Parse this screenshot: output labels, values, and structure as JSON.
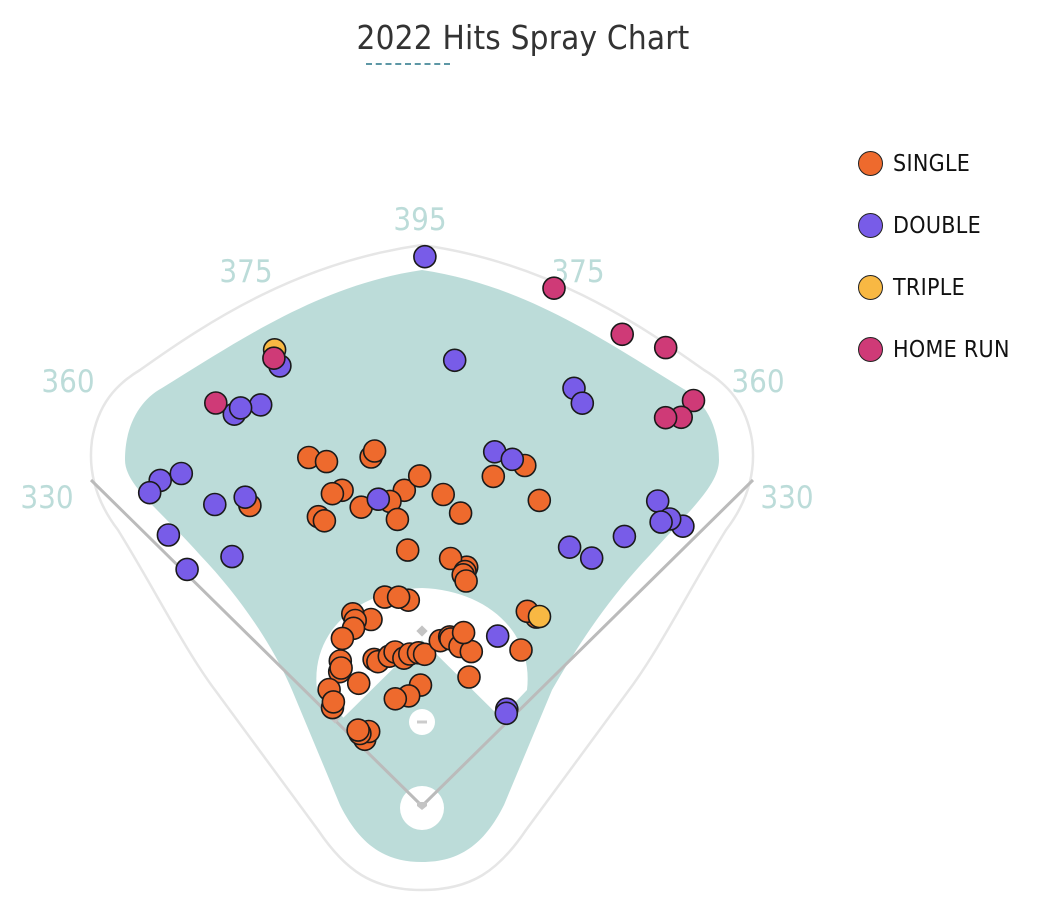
{
  "chart_data": {
    "type": "scatter",
    "title": "2022 Hits Spray Chart",
    "fence_distances": {
      "left_line": "330",
      "left_field": "360",
      "left_center": "375",
      "center": "395",
      "right_center": "375",
      "right_field": "360",
      "right_line": "330"
    },
    "legend_position": "top-right",
    "series": [
      {
        "name": "SINGLE",
        "color": "#ee6a2d",
        "points": [
          [
            -18.0,
            315.2
          ],
          [
            -15.5,
            307.4
          ],
          [
            -8.3,
            303.4
          ],
          [
            -7.6,
            308.1
          ],
          [
            -14.2,
            280.1
          ],
          [
            -16.0,
            279.5
          ],
          [
            -19.7,
            264.3
          ],
          [
            -3.2,
            272.0
          ],
          [
            -0.4,
            284.0
          ],
          [
            -29.8,
            297.9
          ],
          [
            -18.9,
            259.3
          ],
          [
            -11.5,
            262.3
          ],
          [
            -6.0,
            263.5
          ],
          [
            -4.9,
            247.4
          ],
          [
            -3.2,
            220.5
          ],
          [
            12.2,
            290.1
          ],
          [
            16.8,
            306.0
          ],
          [
            21.0,
            281.6
          ],
          [
            3.9,
            268.6
          ],
          [
            7.5,
            254.1
          ],
          [
            31.2,
            190.0
          ],
          [
            28.4,
            190.4
          ],
          [
            32.4,
            158.9
          ],
          [
            10.6,
            209.0
          ],
          [
            6.6,
            214.3
          ],
          [
            10.4,
            205.0
          ],
          [
            10.1,
            202.0
          ],
          [
            11.1,
            197.2
          ],
          [
            -3.8,
            177.4
          ],
          [
            -10.1,
            182.5
          ],
          [
            -6.4,
            180.7
          ],
          [
            -15.3,
            166.3
          ],
          [
            -19.8,
            175.7
          ],
          [
            -19.8,
            169.6
          ],
          [
            -21.1,
            163.8
          ],
          [
            -25.4,
            159.6
          ],
          [
            -29.4,
            143.2
          ],
          [
            -31.5,
            135.5
          ],
          [
            -30.4,
            137.6
          ],
          [
            -27.3,
            118.8
          ],
          [
            -38.6,
            128.1
          ],
          [
            -42.3,
            114.4
          ],
          [
            -40.4,
            117.6
          ],
          [
            -40.6,
            75.6
          ],
          [
            -18.1,
            132.7
          ],
          [
            -17.0,
            129.8
          ],
          [
            -12.3,
            131.9
          ],
          [
            -9.9,
            134.5
          ],
          [
            -7.0,
            128.1
          ],
          [
            -4.6,
            131.2
          ],
          [
            -1.3,
            131.8
          ],
          [
            1.0,
            130.5
          ],
          [
            6.3,
            143.1
          ],
          [
            9.3,
            147.4
          ],
          [
            9.8,
            145.9
          ],
          [
            13.4,
            141.0
          ],
          [
            17.7,
            139.4
          ],
          [
            13.5,
            153.4
          ],
          [
            20.0,
            118.1
          ],
          [
            -0.7,
            104.0
          ],
          [
            -6.9,
            95.4
          ],
          [
            -14.0,
            95.0
          ],
          [
            -35.6,
            78.8
          ],
          [
            -40.6,
            82.1
          ],
          [
            -40.1,
            85.3
          ]
        ]
      },
      {
        "name": "DOUBLE",
        "color": "#785ce8",
        "points": [
          [
            -17.9,
            397.8
          ],
          [
            -25.6,
            373.7
          ],
          [
            -38.8,
            359.4
          ],
          [
            -35.9,
            353.1
          ],
          [
            -41.0,
            357.1
          ],
          [
            -29.8,
            306.1
          ],
          [
            -34.5,
            314.7
          ],
          [
            -8.1,
            266.6
          ],
          [
            -43.1,
            319.3
          ],
          [
            -44.8,
            286.8
          ],
          [
            -37.3,
            269.7
          ],
          [
            -21.9,
            371.9
          ],
          [
            -24.5,
            376.3
          ],
          [
            4.2,
            384.4
          ],
          [
            11.6,
            311.0
          ],
          [
            14.6,
            308.2
          ],
          [
            20.0,
            382.4
          ],
          [
            21.7,
            372.9
          ],
          [
            43.0,
            329.1
          ],
          [
            37.7,
            331.6
          ],
          [
            40.8,
            326.1
          ],
          [
            36.9,
            290.0
          ],
          [
            34.4,
            258.4
          ],
          [
            40.1,
            319.3
          ],
          [
            29.7,
            256.3
          ],
          [
            24.0,
            160.0
          ],
          [
            41.2,
            110.7
          ],
          [
            42.3,
            107.8
          ],
          [
            0.3,
            472.5
          ]
        ]
      },
      {
        "name": "TRIPLE",
        "color": "#f8b843",
        "points": [
          [
            31.8,
            191.8
          ],
          [
            -17.9,
            412.4
          ]
        ]
      },
      {
        "name": "HOME RUN",
        "color": "#cf3a77",
        "points": [
          [
            -18.3,
            405.7
          ],
          [
            -27.1,
            389.4
          ],
          [
            14.3,
            459.7
          ],
          [
            23.0,
            440.8
          ],
          [
            28.0,
            446.6
          ],
          [
            33.8,
            419.8
          ],
          [
            33.7,
            401.9
          ],
          [
            32.1,
            394.3
          ]
        ]
      }
    ]
  }
}
